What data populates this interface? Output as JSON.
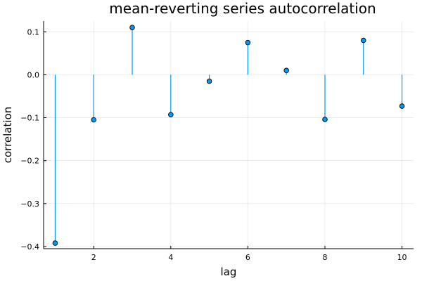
{
  "chart_data": {
    "type": "stem",
    "title": "mean-reverting series autocorrelation",
    "xlabel": "lag",
    "ylabel": "correlation",
    "x": [
      1,
      2,
      3,
      4,
      5,
      6,
      7,
      8,
      9,
      10
    ],
    "values": [
      -0.392,
      -0.105,
      0.11,
      -0.093,
      -0.015,
      0.075,
      0.01,
      -0.104,
      0.08,
      -0.073
    ],
    "baseline": 0,
    "xlim": [
      0.7,
      10.3
    ],
    "ylim": [
      -0.405,
      0.125
    ],
    "xticks": [
      2,
      4,
      6,
      8,
      10
    ],
    "xtick_labels": [
      "2",
      "4",
      "6",
      "8",
      "10"
    ],
    "yticks": [
      0.1,
      0.0,
      -0.1,
      -0.2,
      -0.3,
      -0.4
    ],
    "ytick_labels": [
      "0.1",
      "0.0",
      "−0.1",
      "−0.2",
      "−0.3",
      "−0.4"
    ],
    "grid": true,
    "legend": false,
    "colors": {
      "stem": "#009af9",
      "marker": "#009af9",
      "marker_edge": "#000000"
    }
  }
}
